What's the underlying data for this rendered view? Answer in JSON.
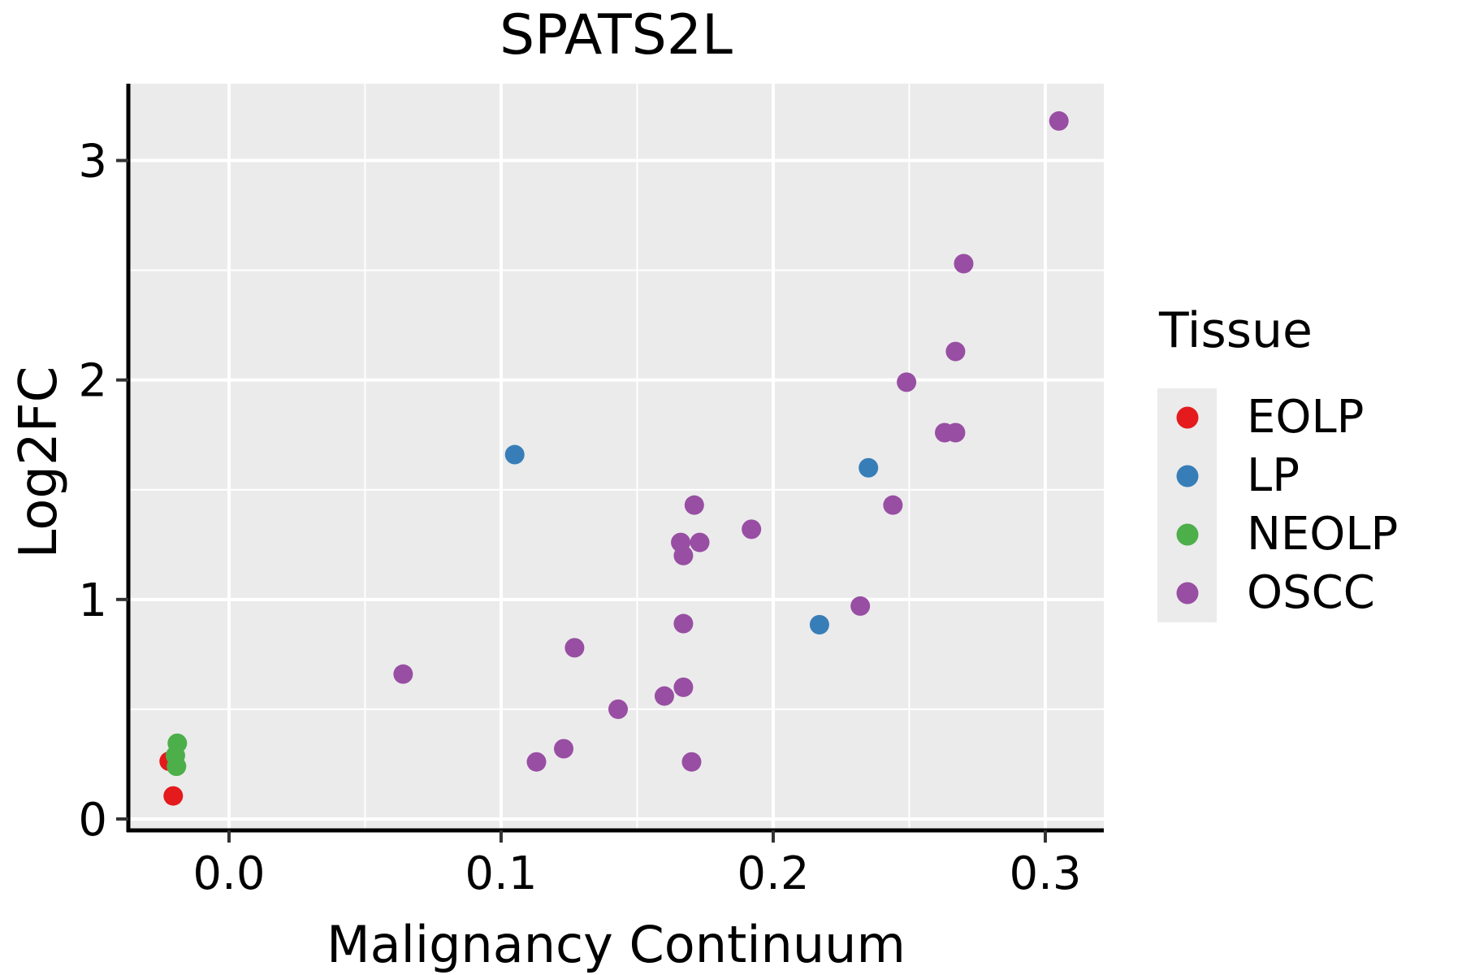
{
  "chart": {
    "title": "SPATS2L",
    "xlabel": "Malignancy Continuum",
    "ylabel": "Log2FC"
  },
  "legend": {
    "title": "Tissue",
    "items": [
      {
        "label": "EOLP",
        "color": "#e41a1c"
      },
      {
        "label": "LP",
        "color": "#377eb8"
      },
      {
        "label": "NEOLP",
        "color": "#4daf4a"
      },
      {
        "label": "OSCC",
        "color": "#984ea3"
      }
    ]
  },
  "chart_data": {
    "type": "scatter",
    "title": "SPATS2L",
    "xlabel": "Malignancy Continuum",
    "ylabel": "Log2FC",
    "xlim": [
      -0.037,
      0.3215
    ],
    "ylim": [
      -0.052,
      3.35
    ],
    "xticks": {
      "values": [
        0.0,
        0.1,
        0.2,
        0.3
      ],
      "labels": [
        "0.0",
        "0.1",
        "0.2",
        "0.3"
      ]
    },
    "yticks": {
      "values": [
        0,
        1,
        2,
        3
      ],
      "labels": [
        "0",
        "1",
        "2",
        "3"
      ]
    },
    "x_minor_gridlines": [
      0.05,
      0.15,
      0.25
    ],
    "y_minor_gridlines": [
      0.5,
      1.5,
      2.5
    ],
    "grid": true,
    "legend_title": "Tissue",
    "legend_position": "right",
    "panel_background": "#ebebeb",
    "gridline_color": "#ffffff",
    "axis_color": "#000000",
    "series": [
      {
        "name": "EOLP",
        "color": "#e41a1c",
        "points": [
          [
            -0.022,
            0.263
          ],
          [
            -0.0205,
            0.105
          ]
        ]
      },
      {
        "name": "LP",
        "color": "#377eb8",
        "points": [
          [
            0.105,
            1.66
          ],
          [
            0.235,
            1.6
          ],
          [
            0.217,
            0.885
          ]
        ]
      },
      {
        "name": "NEOLP",
        "color": "#4daf4a",
        "points": [
          [
            -0.019,
            0.345
          ],
          [
            -0.0197,
            0.289
          ],
          [
            -0.0193,
            0.24
          ]
        ]
      },
      {
        "name": "OSCC",
        "color": "#984ea3",
        "points": [
          [
            0.305,
            3.18
          ],
          [
            0.27,
            2.53
          ],
          [
            0.267,
            2.13
          ],
          [
            0.249,
            1.99
          ],
          [
            0.263,
            1.76
          ],
          [
            0.267,
            1.76
          ],
          [
            0.244,
            1.43
          ],
          [
            0.171,
            1.43
          ],
          [
            0.192,
            1.32
          ],
          [
            0.166,
            1.26
          ],
          [
            0.173,
            1.26
          ],
          [
            0.167,
            1.2
          ],
          [
            0.232,
            0.97
          ],
          [
            0.167,
            0.89
          ],
          [
            0.127,
            0.78
          ],
          [
            0.064,
            0.66
          ],
          [
            0.167,
            0.6
          ],
          [
            0.16,
            0.56
          ],
          [
            0.143,
            0.5
          ],
          [
            0.123,
            0.32
          ],
          [
            0.113,
            0.26
          ],
          [
            0.17,
            0.26
          ]
        ]
      }
    ]
  }
}
